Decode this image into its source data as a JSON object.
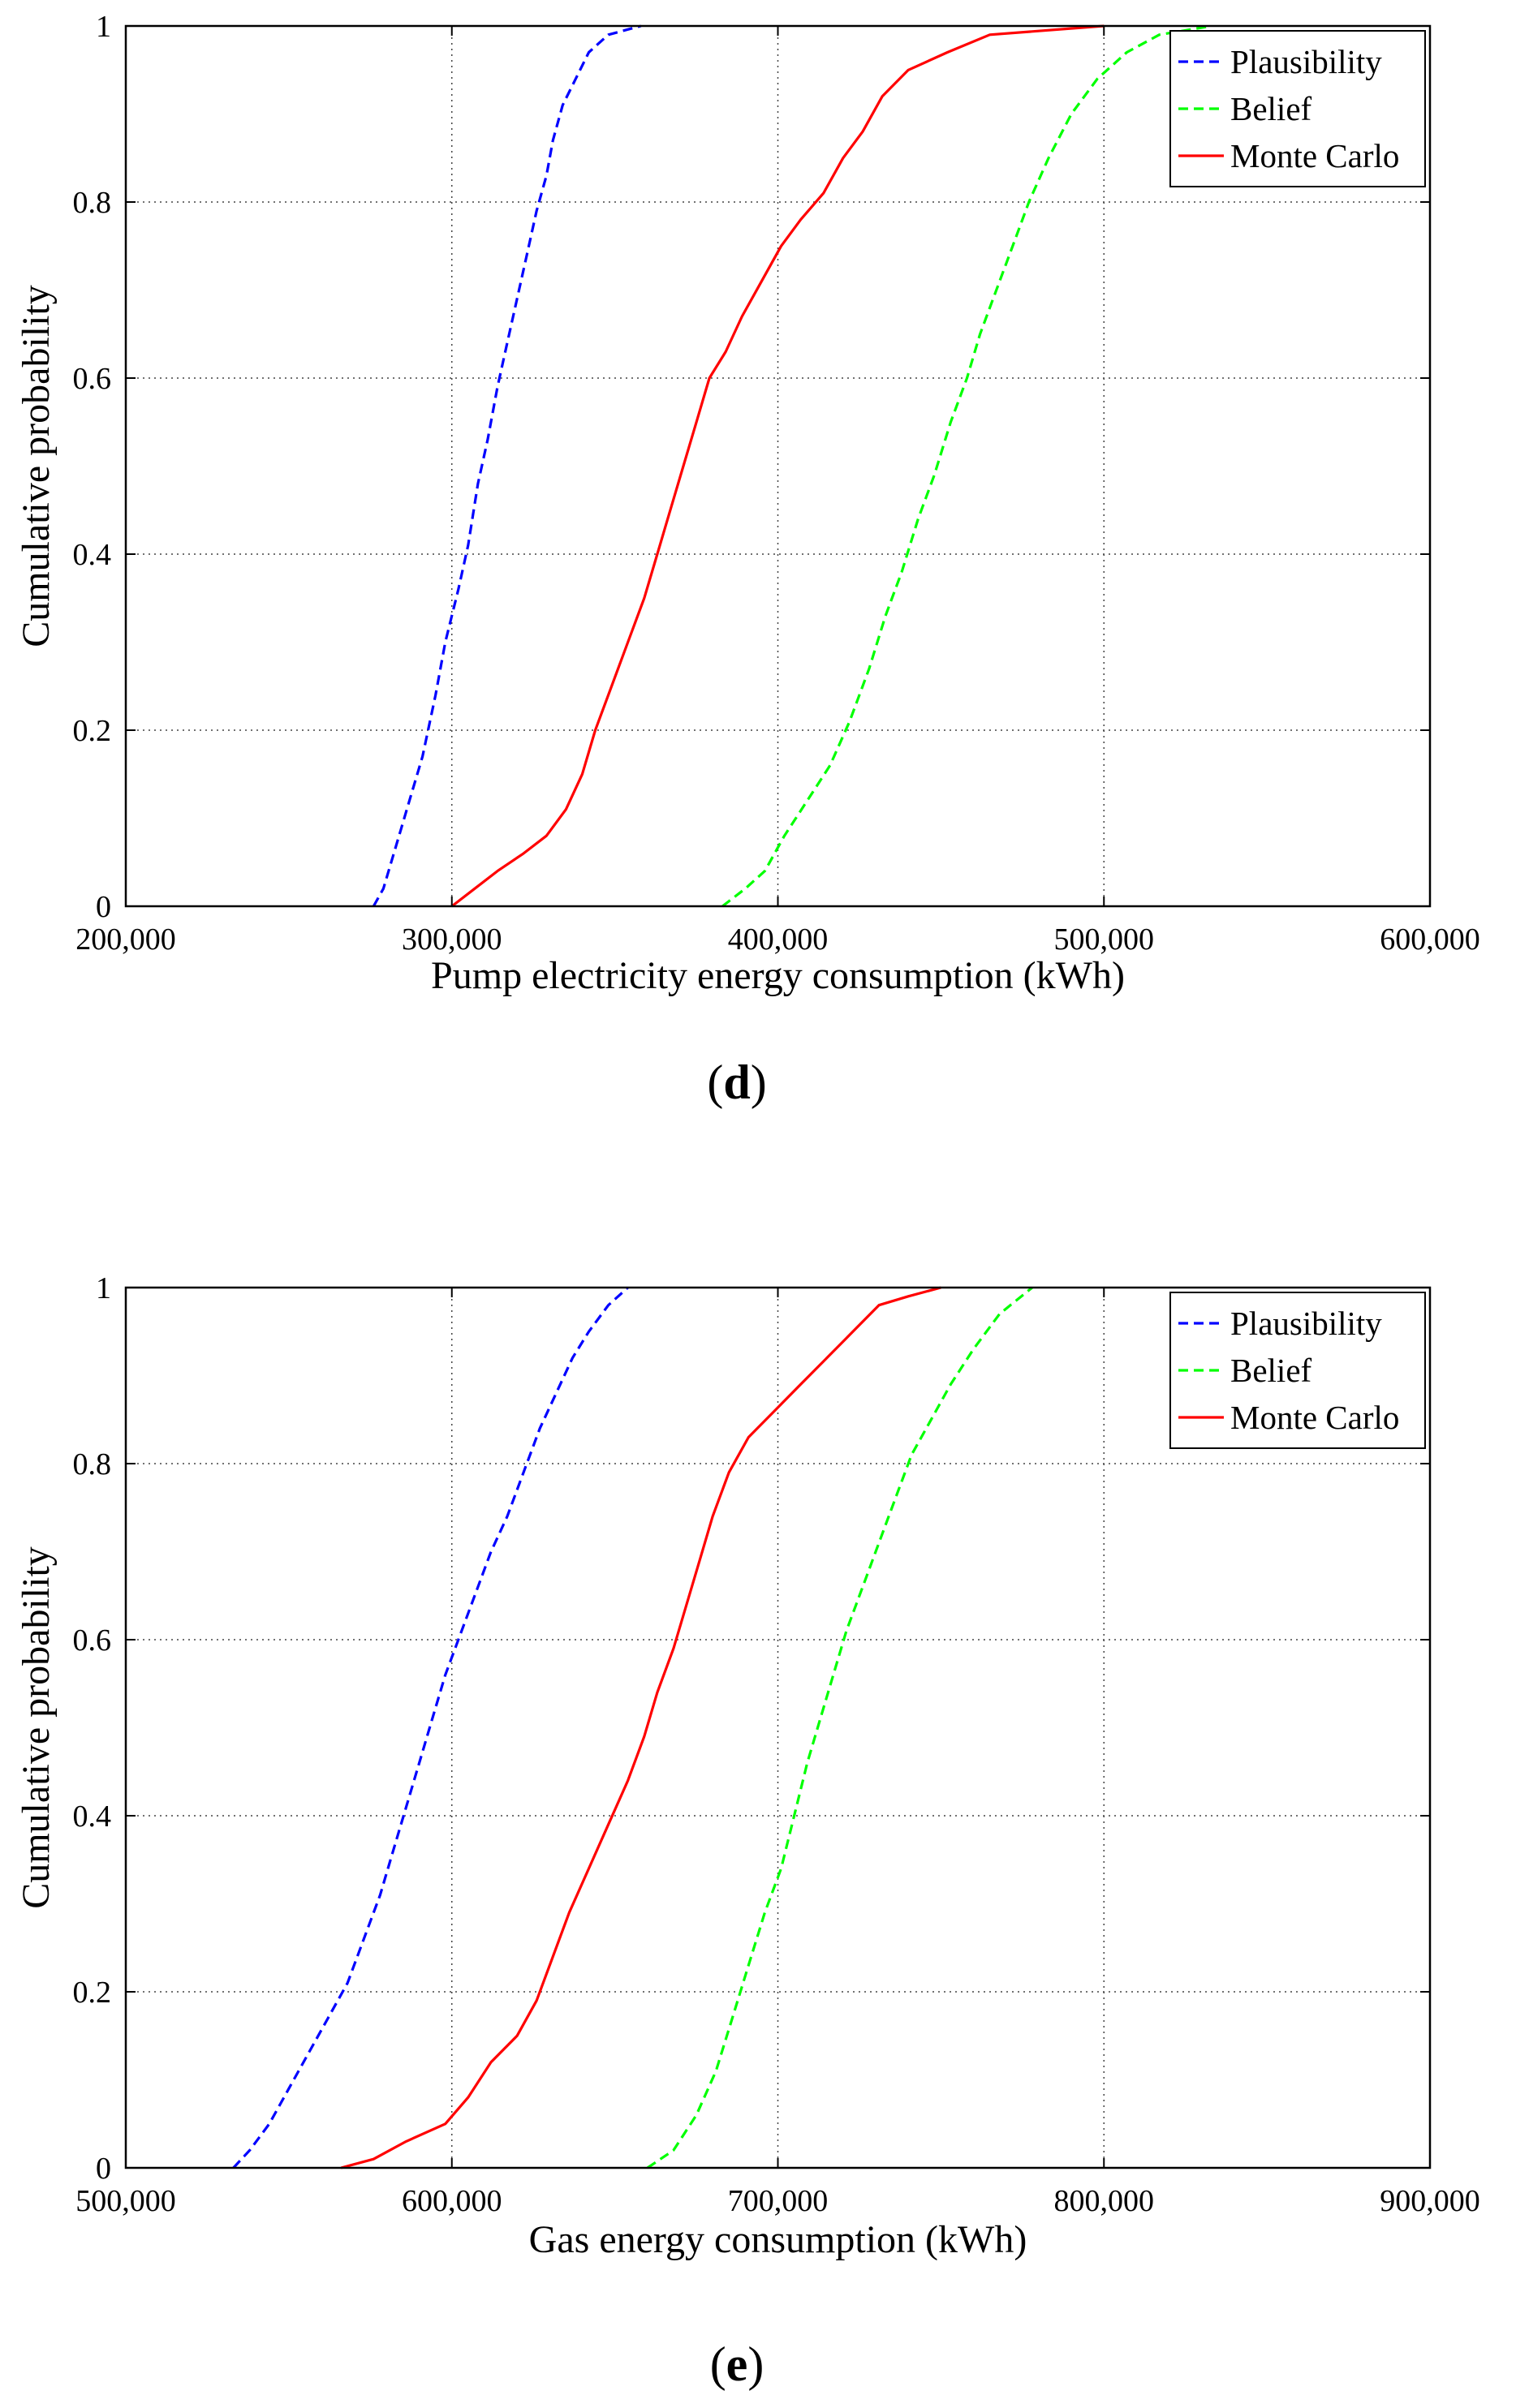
{
  "chart_data": [
    {
      "type": "line",
      "panel_label": "d",
      "xlabel": "Pump electricity energy consumption (kWh)",
      "ylabel": "Cumulative probability",
      "xlim": [
        200000,
        600000
      ],
      "ylim": [
        0,
        1
      ],
      "xticks": [
        200000,
        300000,
        400000,
        500000,
        600000
      ],
      "xtick_labels": [
        "200,000",
        "300,000",
        "400,000",
        "500,000",
        "600,000"
      ],
      "yticks": [
        0,
        0.2,
        0.4,
        0.6,
        0.8,
        1
      ],
      "ytick_labels": [
        "0",
        "0.2",
        "0.4",
        "0.6",
        "0.8",
        "1"
      ],
      "grid": true,
      "legend_position": "top-right",
      "series": [
        {
          "name": "Plausibility",
          "color": "#0000ff",
          "style": "dashed",
          "points": [
            [
              276000,
              0
            ],
            [
              279000,
              0.02
            ],
            [
              283000,
              0.07
            ],
            [
              287000,
              0.12
            ],
            [
              291000,
              0.17
            ],
            [
              295000,
              0.24
            ],
            [
              298000,
              0.3
            ],
            [
              302000,
              0.36
            ],
            [
              305000,
              0.41
            ],
            [
              308000,
              0.48
            ],
            [
              311000,
              0.53
            ],
            [
              314000,
              0.59
            ],
            [
              317000,
              0.64
            ],
            [
              320000,
              0.69
            ],
            [
              323000,
              0.74
            ],
            [
              326000,
              0.79
            ],
            [
              329000,
              0.83
            ],
            [
              331000,
              0.87
            ],
            [
              334000,
              0.91
            ],
            [
              338000,
              0.94
            ],
            [
              342000,
              0.97
            ],
            [
              348000,
              0.99
            ],
            [
              358000,
              1
            ]
          ]
        },
        {
          "name": "Belief",
          "color": "#00ff00",
          "style": "dashed",
          "points": [
            [
              383000,
              0
            ],
            [
              390000,
              0.02
            ],
            [
              396000,
              0.04
            ],
            [
              402000,
              0.08
            ],
            [
              409000,
              0.12
            ],
            [
              416000,
              0.16
            ],
            [
              422000,
              0.21
            ],
            [
              428000,
              0.27
            ],
            [
              433000,
              0.33
            ],
            [
              438000,
              0.38
            ],
            [
              443000,
              0.44
            ],
            [
              448000,
              0.49
            ],
            [
              453000,
              0.55
            ],
            [
              458000,
              0.6
            ],
            [
              462000,
              0.65
            ],
            [
              467000,
              0.7
            ],
            [
              472000,
              0.75
            ],
            [
              477000,
              0.8
            ],
            [
              483000,
              0.85
            ],
            [
              490000,
              0.9
            ],
            [
              498000,
              0.94
            ],
            [
              507000,
              0.97
            ],
            [
              517000,
              0.99
            ],
            [
              533000,
              1
            ]
          ]
        },
        {
          "name": "Monte Carlo",
          "color": "#ff0000",
          "style": "solid",
          "points": [
            [
              300000,
              0
            ],
            [
              307000,
              0.02
            ],
            [
              314000,
              0.04
            ],
            [
              322000,
              0.06
            ],
            [
              329000,
              0.08
            ],
            [
              335000,
              0.11
            ],
            [
              340000,
              0.15
            ],
            [
              344000,
              0.2
            ],
            [
              349000,
              0.25
            ],
            [
              354000,
              0.3
            ],
            [
              359000,
              0.35
            ],
            [
              363000,
              0.4
            ],
            [
              367000,
              0.45
            ],
            [
              371000,
              0.5
            ],
            [
              375000,
              0.55
            ],
            [
              379000,
              0.6
            ],
            [
              384000,
              0.63
            ],
            [
              389000,
              0.67
            ],
            [
              395000,
              0.71
            ],
            [
              401000,
              0.75
            ],
            [
              407000,
              0.78
            ],
            [
              414000,
              0.81
            ],
            [
              420000,
              0.85
            ],
            [
              426000,
              0.88
            ],
            [
              432000,
              0.92
            ],
            [
              440000,
              0.95
            ],
            [
              452000,
              0.97
            ],
            [
              465000,
              0.99
            ],
            [
              500000,
              1
            ]
          ]
        }
      ]
    },
    {
      "type": "line",
      "panel_label": "e",
      "xlabel": "Gas energy consumption (kWh)",
      "ylabel": "Cumulative probability",
      "xlim": [
        500000,
        900000
      ],
      "ylim": [
        0,
        1
      ],
      "xticks": [
        500000,
        600000,
        700000,
        800000,
        900000
      ],
      "xtick_labels": [
        "500,000",
        "600,000",
        "700,000",
        "800,000",
        "900,000"
      ],
      "yticks": [
        0,
        0.2,
        0.4,
        0.6,
        0.8,
        1
      ],
      "ytick_labels": [
        "0",
        "0.2",
        "0.4",
        "0.6",
        "0.8",
        "1"
      ],
      "grid": true,
      "legend_position": "top-right",
      "series": [
        {
          "name": "Plausibility",
          "color": "#0000ff",
          "style": "dashed",
          "points": [
            [
              533000,
              0
            ],
            [
              538000,
              0.02
            ],
            [
              544000,
              0.05
            ],
            [
              550000,
              0.09
            ],
            [
              556000,
              0.13
            ],
            [
              562000,
              0.17
            ],
            [
              568000,
              0.21
            ],
            [
              573000,
              0.26
            ],
            [
              578000,
              0.31
            ],
            [
              582000,
              0.36
            ],
            [
              586000,
              0.41
            ],
            [
              590000,
              0.46
            ],
            [
              594000,
              0.51
            ],
            [
              598000,
              0.56
            ],
            [
              602000,
              0.6
            ],
            [
              607000,
              0.65
            ],
            [
              612000,
              0.7
            ],
            [
              617000,
              0.74
            ],
            [
              622000,
              0.79
            ],
            [
              627000,
              0.84
            ],
            [
              632000,
              0.88
            ],
            [
              637000,
              0.92
            ],
            [
              642000,
              0.95
            ],
            [
              648000,
              0.98
            ],
            [
              654000,
              1
            ]
          ]
        },
        {
          "name": "Belief",
          "color": "#00ff00",
          "style": "dashed",
          "points": [
            [
              660000,
              0
            ],
            [
              668000,
              0.02
            ],
            [
              675000,
              0.06
            ],
            [
              681000,
              0.11
            ],
            [
              686000,
              0.17
            ],
            [
              691000,
              0.23
            ],
            [
              696000,
              0.29
            ],
            [
              701000,
              0.34
            ],
            [
              705000,
              0.4
            ],
            [
              709000,
              0.46
            ],
            [
              713000,
              0.51
            ],
            [
              717000,
              0.56
            ],
            [
              721000,
              0.61
            ],
            [
              726000,
              0.66
            ],
            [
              731000,
              0.71
            ],
            [
              736000,
              0.76
            ],
            [
              741000,
              0.81
            ],
            [
              747000,
              0.85
            ],
            [
              753000,
              0.89
            ],
            [
              760000,
              0.93
            ],
            [
              768000,
              0.97
            ],
            [
              778000,
              1
            ]
          ]
        },
        {
          "name": "Monte Carlo",
          "color": "#ff0000",
          "style": "solid",
          "points": [
            [
              566000,
              0
            ],
            [
              576000,
              0.01
            ],
            [
              586000,
              0.03
            ],
            [
              598000,
              0.05
            ],
            [
              605000,
              0.08
            ],
            [
              612000,
              0.12
            ],
            [
              620000,
              0.15
            ],
            [
              626000,
              0.19
            ],
            [
              631000,
              0.24
            ],
            [
              636000,
              0.29
            ],
            [
              642000,
              0.34
            ],
            [
              648000,
              0.39
            ],
            [
              654000,
              0.44
            ],
            [
              659000,
              0.49
            ],
            [
              663000,
              0.54
            ],
            [
              668000,
              0.59
            ],
            [
              672000,
              0.64
            ],
            [
              676000,
              0.69
            ],
            [
              680000,
              0.74
            ],
            [
              685000,
              0.79
            ],
            [
              691000,
              0.83
            ],
            [
              699000,
              0.86
            ],
            [
              707000,
              0.89
            ],
            [
              715000,
              0.92
            ],
            [
              723000,
              0.95
            ],
            [
              731000,
              0.98
            ],
            [
              740000,
              0.99
            ],
            [
              750000,
              1
            ]
          ]
        }
      ]
    }
  ]
}
